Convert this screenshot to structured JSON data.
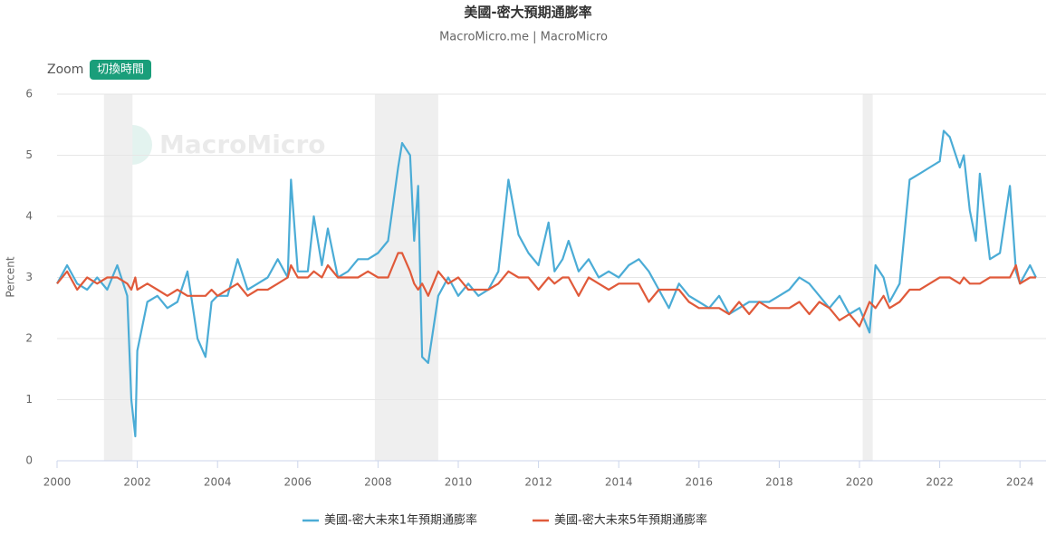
{
  "chart_data": {
    "type": "line",
    "title": "美國-密大預期通膨率",
    "subtitle": "MacroMicro.me | MacroMicro",
    "zoom_label": "Zoom",
    "button": "切換時間",
    "watermark": "MacroMicro",
    "y_label": "Percent",
    "xlim": [
      2000,
      2024.65
    ],
    "ylim": [
      0,
      6
    ],
    "xticks": [
      2000,
      2002,
      2004,
      2006,
      2008,
      2010,
      2012,
      2014,
      2016,
      2018,
      2020,
      2022,
      2024
    ],
    "yticks": [
      0,
      1,
      2,
      3,
      4,
      5,
      6
    ],
    "grid": true,
    "recessions": [
      [
        2001.17,
        2001.88
      ],
      [
        2007.92,
        2009.5
      ],
      [
        2020.08,
        2020.33
      ]
    ],
    "x": [
      2000,
      2000.25,
      2000.5,
      2000.75,
      2001,
      2001.25,
      2001.5,
      2001.75,
      2001.85,
      2001.95,
      2002,
      2002.25,
      2002.5,
      2002.75,
      2003,
      2003.25,
      2003.5,
      2003.7,
      2003.85,
      2004,
      2004.25,
      2004.5,
      2004.75,
      2005,
      2005.25,
      2005.5,
      2005.75,
      2005.83,
      2006,
      2006.25,
      2006.4,
      2006.6,
      2006.75,
      2007,
      2007.25,
      2007.5,
      2007.75,
      2008,
      2008.25,
      2008.5,
      2008.6,
      2008.8,
      2008.9,
      2009,
      2009.1,
      2009.25,
      2009.5,
      2009.75,
      2010,
      2010.25,
      2010.5,
      2010.75,
      2011,
      2011.25,
      2011.5,
      2011.75,
      2012,
      2012.25,
      2012.4,
      2012.6,
      2012.75,
      2013,
      2013.25,
      2013.5,
      2013.75,
      2014,
      2014.25,
      2014.5,
      2014.75,
      2015,
      2015.25,
      2015.5,
      2015.75,
      2016,
      2016.25,
      2016.5,
      2016.75,
      2017,
      2017.25,
      2017.5,
      2017.75,
      2018,
      2018.25,
      2018.5,
      2018.75,
      2019,
      2019.25,
      2019.5,
      2019.75,
      2020,
      2020.25,
      2020.4,
      2020.6,
      2020.75,
      2021,
      2021.25,
      2021.5,
      2021.75,
      2022,
      2022.1,
      2022.25,
      2022.5,
      2022.6,
      2022.75,
      2022.9,
      2023,
      2023.25,
      2023.5,
      2023.75,
      2023.9,
      2024,
      2024.25,
      2024.4
    ],
    "series": [
      {
        "name": "美國-密大未來1年預期通膨率",
        "color": "#4bacd6",
        "values": [
          2.9,
          3.2,
          2.9,
          2.8,
          3.0,
          2.8,
          3.2,
          2.7,
          1.0,
          0.4,
          1.8,
          2.6,
          2.7,
          2.5,
          2.6,
          3.1,
          2.0,
          1.7,
          2.6,
          2.7,
          2.7,
          3.3,
          2.8,
          2.9,
          3.0,
          3.3,
          3.0,
          4.6,
          3.1,
          3.1,
          4.0,
          3.2,
          3.8,
          3.0,
          3.1,
          3.3,
          3.3,
          3.4,
          3.6,
          4.8,
          5.2,
          5.0,
          3.6,
          4.5,
          1.7,
          1.6,
          2.7,
          3.0,
          2.7,
          2.9,
          2.7,
          2.8,
          3.1,
          4.6,
          3.7,
          3.4,
          3.2,
          3.9,
          3.1,
          3.3,
          3.6,
          3.1,
          3.3,
          3.0,
          3.1,
          3.0,
          3.2,
          3.3,
          3.1,
          2.8,
          2.5,
          2.9,
          2.7,
          2.6,
          2.5,
          2.7,
          2.4,
          2.5,
          2.6,
          2.6,
          2.6,
          2.7,
          2.8,
          3.0,
          2.9,
          2.7,
          2.5,
          2.7,
          2.4,
          2.5,
          2.1,
          3.2,
          3.0,
          2.6,
          2.9,
          4.6,
          4.7,
          4.8,
          4.9,
          5.4,
          5.3,
          4.8,
          5.0,
          4.1,
          3.6,
          4.7,
          3.3,
          3.4,
          4.5,
          3.1,
          2.9,
          3.2,
          3.0
        ]
      },
      {
        "name": "美國-密大未來5年預期通膨率",
        "color": "#e05a3a",
        "values": [
          2.9,
          3.1,
          2.8,
          3.0,
          2.9,
          3.0,
          3.0,
          2.9,
          2.8,
          3.0,
          2.8,
          2.9,
          2.8,
          2.7,
          2.8,
          2.7,
          2.7,
          2.7,
          2.8,
          2.7,
          2.8,
          2.9,
          2.7,
          2.8,
          2.8,
          2.9,
          3.0,
          3.2,
          3.0,
          3.0,
          3.1,
          3.0,
          3.2,
          3.0,
          3.0,
          3.0,
          3.1,
          3.0,
          3.0,
          3.4,
          3.4,
          3.1,
          2.9,
          2.8,
          2.9,
          2.7,
          3.1,
          2.9,
          3.0,
          2.8,
          2.8,
          2.8,
          2.9,
          3.1,
          3.0,
          3.0,
          2.8,
          3.0,
          2.9,
          3.0,
          3.0,
          2.7,
          3.0,
          2.9,
          2.8,
          2.9,
          2.9,
          2.9,
          2.6,
          2.8,
          2.8,
          2.8,
          2.6,
          2.5,
          2.5,
          2.5,
          2.4,
          2.6,
          2.4,
          2.6,
          2.5,
          2.5,
          2.5,
          2.6,
          2.4,
          2.6,
          2.5,
          2.3,
          2.4,
          2.2,
          2.6,
          2.5,
          2.7,
          2.5,
          2.6,
          2.8,
          2.8,
          2.9,
          3.0,
          3.0,
          3.0,
          2.9,
          3.0,
          2.9,
          2.9,
          2.9,
          3.0,
          3.0,
          3.0,
          3.2,
          2.9,
          3.0,
          3.0
        ]
      }
    ]
  }
}
